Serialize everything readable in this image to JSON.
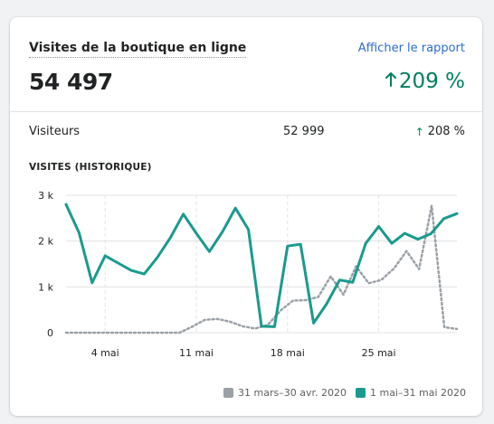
{
  "card": {
    "title": "Visites de la boutique en ligne",
    "link": "Afficher le rapport",
    "total": "54 497",
    "change": "209 %",
    "row": {
      "label": "Visiteurs",
      "value": "52 999",
      "change": "208 %"
    },
    "section_title": "VISITES (HISTORIQUE)"
  },
  "colors": {
    "current": "#1a9a8e",
    "previous": "#9aa0a6",
    "positive": "#007f5f",
    "grid": "#e1e3e5"
  },
  "chart_data": {
    "type": "line",
    "ylim": [
      0,
      3000
    ],
    "y_ticks": [
      "0",
      "1 k",
      "2 k",
      "3 k"
    ],
    "x_ticks": [
      "4 mai",
      "11 mai",
      "18 mai",
      "25 mai"
    ],
    "x_tick_index": [
      3,
      10,
      17,
      24
    ],
    "series": [
      {
        "name": "31 mars–30 avr. 2020",
        "values": [
          0,
          0,
          0,
          0,
          0,
          0,
          0,
          0,
          0,
          0,
          130,
          280,
          300,
          240,
          140,
          90,
          170,
          480,
          700,
          710,
          780,
          1230,
          830,
          1450,
          1080,
          1150,
          1400,
          1780,
          1390,
          2770,
          120,
          80
        ]
      },
      {
        "name": "1 mai–31 mai 2020",
        "values": [
          2800,
          2180,
          1090,
          1680,
          1520,
          1360,
          1280,
          1640,
          2070,
          2590,
          2170,
          1770,
          2200,
          2720,
          2250,
          140,
          130,
          1890,
          1930,
          210,
          630,
          1150,
          1100,
          1950,
          2320,
          1950,
          2170,
          2040,
          2160,
          2490,
          2600
        ]
      }
    ]
  }
}
